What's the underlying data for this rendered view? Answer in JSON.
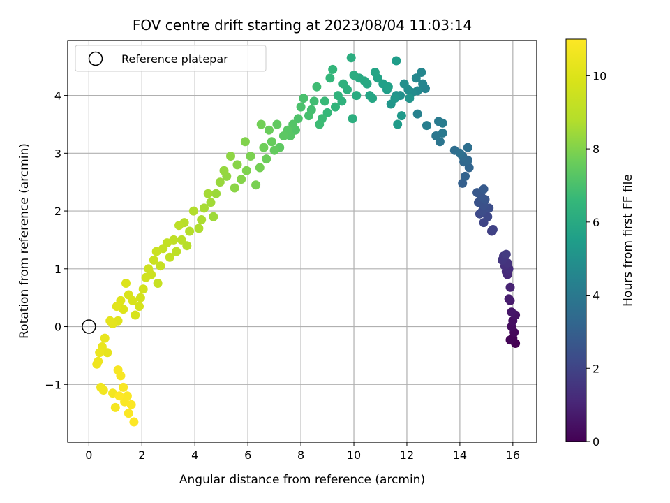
{
  "chart_data": {
    "type": "scatter",
    "title": "FOV centre drift starting at 2023/08/04 11:03:14",
    "xlabel": "Angular distance from reference (arcmin)",
    "ylabel": "Rotation from reference (arcmin)",
    "xlim": [
      -0.8,
      16.9
    ],
    "ylim": [
      -2.0,
      4.95
    ],
    "xticks": [
      0,
      2,
      4,
      6,
      8,
      10,
      12,
      14,
      16
    ],
    "yticks": [
      -1,
      0,
      1,
      2,
      3,
      4
    ],
    "xtick_labels": [
      "0",
      "2",
      "4",
      "6",
      "8",
      "10",
      "12",
      "14",
      "16"
    ],
    "ytick_labels": [
      "−1",
      "0",
      "1",
      "2",
      "3",
      "4"
    ],
    "grid": true,
    "legend": {
      "placement": "top-left",
      "entries": [
        "Reference platepar"
      ]
    },
    "reference_point": {
      "x": 0,
      "y": 0
    },
    "colorbar": {
      "label": "Hours from first FF file",
      "range": [
        0,
        11
      ],
      "ticks": [
        0,
        2,
        4,
        6,
        8,
        10
      ],
      "tick_labels": [
        "0",
        "2",
        "4",
        "6",
        "8",
        "10"
      ],
      "colormap": "viridis"
    },
    "series": [
      {
        "points": [
          [
            16.1,
            -0.29,
            0.0
          ],
          [
            16.0,
            -0.2,
            0.05
          ],
          [
            15.9,
            -0.23,
            0.1
          ],
          [
            16.05,
            -0.1,
            0.2
          ],
          [
            15.95,
            0.0,
            0.3
          ],
          [
            16.0,
            0.1,
            0.4
          ],
          [
            16.1,
            0.2,
            0.5
          ],
          [
            15.95,
            0.25,
            0.6
          ],
          [
            15.9,
            0.45,
            0.7
          ],
          [
            15.85,
            0.48,
            0.8
          ],
          [
            15.9,
            0.68,
            0.95
          ],
          [
            15.8,
            0.9,
            1.1
          ],
          [
            15.75,
            0.95,
            1.2
          ],
          [
            15.85,
            1.0,
            1.3
          ],
          [
            15.7,
            1.05,
            1.35
          ],
          [
            15.8,
            1.1,
            1.45
          ],
          [
            15.6,
            1.15,
            1.55
          ],
          [
            15.65,
            1.22,
            1.6
          ],
          [
            15.75,
            1.25,
            1.7
          ],
          [
            15.2,
            1.65,
            1.85
          ],
          [
            15.25,
            1.68,
            1.95
          ],
          [
            14.9,
            1.8,
            2.05
          ],
          [
            15.05,
            1.9,
            2.15
          ],
          [
            14.75,
            1.95,
            2.2
          ],
          [
            14.85,
            2.0,
            2.3
          ],
          [
            15.1,
            2.05,
            2.35
          ],
          [
            14.9,
            2.1,
            2.45
          ],
          [
            14.7,
            2.15,
            2.5
          ],
          [
            14.95,
            2.2,
            2.6
          ],
          [
            14.8,
            2.25,
            2.65
          ],
          [
            14.65,
            2.32,
            2.7
          ],
          [
            14.9,
            2.38,
            2.8
          ],
          [
            14.1,
            2.48,
            3.0
          ],
          [
            14.2,
            2.6,
            3.1
          ],
          [
            14.35,
            2.75,
            3.2
          ],
          [
            14.15,
            2.85,
            3.3
          ],
          [
            14.3,
            2.88,
            3.35
          ],
          [
            14.1,
            2.95,
            3.45
          ],
          [
            13.8,
            3.05,
            3.55
          ],
          [
            14.3,
            3.1,
            3.6
          ],
          [
            14.0,
            3.0,
            3.65
          ],
          [
            13.25,
            3.2,
            3.85
          ],
          [
            13.1,
            3.3,
            3.95
          ],
          [
            13.35,
            3.35,
            4.0
          ],
          [
            13.2,
            3.55,
            4.05
          ],
          [
            13.35,
            3.52,
            4.15
          ],
          [
            12.75,
            3.48,
            4.25
          ],
          [
            12.4,
            3.68,
            4.35
          ],
          [
            12.7,
            4.12,
            4.45
          ],
          [
            12.6,
            4.2,
            4.5
          ],
          [
            12.55,
            4.4,
            4.55
          ],
          [
            12.35,
            4.3,
            4.6
          ],
          [
            12.4,
            4.08,
            4.65
          ],
          [
            12.2,
            4.05,
            4.75
          ],
          [
            12.05,
            4.1,
            4.85
          ],
          [
            11.9,
            4.2,
            4.9
          ],
          [
            11.75,
            4.0,
            4.95
          ],
          [
            11.6,
            4.0,
            5.05
          ],
          [
            12.1,
            3.95,
            5.1
          ],
          [
            11.4,
            3.85,
            5.2
          ],
          [
            11.55,
            3.95,
            5.25
          ],
          [
            11.8,
            3.65,
            5.3
          ],
          [
            11.65,
            3.5,
            5.4
          ],
          [
            11.6,
            4.6,
            5.45
          ],
          [
            11.25,
            4.1,
            5.5
          ],
          [
            11.1,
            4.2,
            5.6
          ],
          [
            11.3,
            4.15,
            5.65
          ],
          [
            10.9,
            4.3,
            5.7
          ],
          [
            10.8,
            4.4,
            5.75
          ],
          [
            10.6,
            4.0,
            5.8
          ],
          [
            10.7,
            3.95,
            5.85
          ],
          [
            10.5,
            4.2,
            5.9
          ],
          [
            10.4,
            4.25,
            5.95
          ],
          [
            10.2,
            4.3,
            6.0
          ],
          [
            10.1,
            4.0,
            6.05
          ],
          [
            10.0,
            4.35,
            6.1
          ],
          [
            9.9,
            4.65,
            6.15
          ],
          [
            9.95,
            3.6,
            6.2
          ],
          [
            9.75,
            4.1,
            6.25
          ],
          [
            9.6,
            4.2,
            6.3
          ],
          [
            9.55,
            3.9,
            6.35
          ],
          [
            9.4,
            4.0,
            6.4
          ],
          [
            9.3,
            3.8,
            6.45
          ],
          [
            9.2,
            4.45,
            6.5
          ],
          [
            9.1,
            4.3,
            6.55
          ],
          [
            9.0,
            3.7,
            6.6
          ],
          [
            8.9,
            3.9,
            6.65
          ],
          [
            8.8,
            3.6,
            6.7
          ],
          [
            8.7,
            3.5,
            6.75
          ],
          [
            8.6,
            4.15,
            6.8
          ],
          [
            8.5,
            3.9,
            6.85
          ],
          [
            8.4,
            3.75,
            6.9
          ],
          [
            8.3,
            3.65,
            6.95
          ],
          [
            8.1,
            3.95,
            7.0
          ],
          [
            8.0,
            3.8,
            7.05
          ],
          [
            7.9,
            3.6,
            7.1
          ],
          [
            7.8,
            3.4,
            7.15
          ],
          [
            7.7,
            3.5,
            7.2
          ],
          [
            7.6,
            3.3,
            7.25
          ],
          [
            7.5,
            3.4,
            7.3
          ],
          [
            7.35,
            3.3,
            7.35
          ],
          [
            7.2,
            3.1,
            7.4
          ],
          [
            7.1,
            3.5,
            7.45
          ],
          [
            7.0,
            3.05,
            7.5
          ],
          [
            6.9,
            3.2,
            7.55
          ],
          [
            6.8,
            3.4,
            7.6
          ],
          [
            6.7,
            2.9,
            7.65
          ],
          [
            6.6,
            3.1,
            7.7
          ],
          [
            6.5,
            3.5,
            7.75
          ],
          [
            6.45,
            2.75,
            7.8
          ],
          [
            6.3,
            2.45,
            7.85
          ],
          [
            6.1,
            2.95,
            7.9
          ],
          [
            5.95,
            2.7,
            7.95
          ],
          [
            5.9,
            3.2,
            8.0
          ],
          [
            5.75,
            2.55,
            8.05
          ],
          [
            5.6,
            2.8,
            8.1
          ],
          [
            5.5,
            2.4,
            8.15
          ],
          [
            5.35,
            2.95,
            8.2
          ],
          [
            5.2,
            2.6,
            8.25
          ],
          [
            5.1,
            2.7,
            8.3
          ],
          [
            4.95,
            2.5,
            8.35
          ],
          [
            4.8,
            2.3,
            8.4
          ],
          [
            4.7,
            1.9,
            8.45
          ],
          [
            4.6,
            2.15,
            8.5
          ],
          [
            4.5,
            2.3,
            8.55
          ],
          [
            4.35,
            2.05,
            8.6
          ],
          [
            4.25,
            1.85,
            8.65
          ],
          [
            4.15,
            1.7,
            8.7
          ],
          [
            3.95,
            2.0,
            8.75
          ],
          [
            3.8,
            1.65,
            8.8
          ],
          [
            3.7,
            1.4,
            8.85
          ],
          [
            3.6,
            1.8,
            8.9
          ],
          [
            3.5,
            1.5,
            8.95
          ],
          [
            3.4,
            1.75,
            9.0
          ],
          [
            3.3,
            1.3,
            9.05
          ],
          [
            3.2,
            1.5,
            9.1
          ],
          [
            3.05,
            1.2,
            9.15
          ],
          [
            2.95,
            1.45,
            9.2
          ],
          [
            2.8,
            1.35,
            9.25
          ],
          [
            2.7,
            1.05,
            9.3
          ],
          [
            2.6,
            0.75,
            9.35
          ],
          [
            2.55,
            1.3,
            9.4
          ],
          [
            2.45,
            1.15,
            9.45
          ],
          [
            2.35,
            0.9,
            9.5
          ],
          [
            2.25,
            1.0,
            9.55
          ],
          [
            2.15,
            0.85,
            9.6
          ],
          [
            2.05,
            0.65,
            9.65
          ],
          [
            1.95,
            0.5,
            9.7
          ],
          [
            1.9,
            0.35,
            9.75
          ],
          [
            1.75,
            0.2,
            9.8
          ],
          [
            1.65,
            0.45,
            9.85
          ],
          [
            1.5,
            0.55,
            9.9
          ],
          [
            1.4,
            0.75,
            9.95
          ],
          [
            1.3,
            0.3,
            10.0
          ],
          [
            1.2,
            0.45,
            10.05
          ],
          [
            1.1,
            0.1,
            10.1
          ],
          [
            1.05,
            0.35,
            10.15
          ],
          [
            0.9,
            0.05,
            10.2
          ],
          [
            0.8,
            0.1,
            10.25
          ],
          [
            0.7,
            -0.45,
            10.3
          ],
          [
            0.6,
            -0.2,
            10.35
          ],
          [
            0.5,
            -0.35,
            10.4
          ],
          [
            0.4,
            -0.45,
            10.45
          ],
          [
            0.35,
            -0.6,
            10.5
          ],
          [
            0.3,
            -0.65,
            10.55
          ],
          [
            0.45,
            -1.05,
            10.6
          ],
          [
            0.55,
            -1.1,
            10.65
          ],
          [
            0.9,
            -1.15,
            10.7
          ],
          [
            1.0,
            -1.4,
            10.75
          ],
          [
            1.2,
            -0.85,
            10.8
          ],
          [
            1.1,
            -0.75,
            10.82
          ],
          [
            1.3,
            -1.05,
            10.85
          ],
          [
            1.35,
            -1.3,
            10.88
          ],
          [
            1.45,
            -1.2,
            10.9
          ],
          [
            1.5,
            -1.5,
            10.92
          ],
          [
            1.6,
            -1.35,
            10.95
          ],
          [
            1.7,
            -1.65,
            10.98
          ],
          [
            1.15,
            -1.2,
            11.0
          ]
        ]
      }
    ]
  }
}
